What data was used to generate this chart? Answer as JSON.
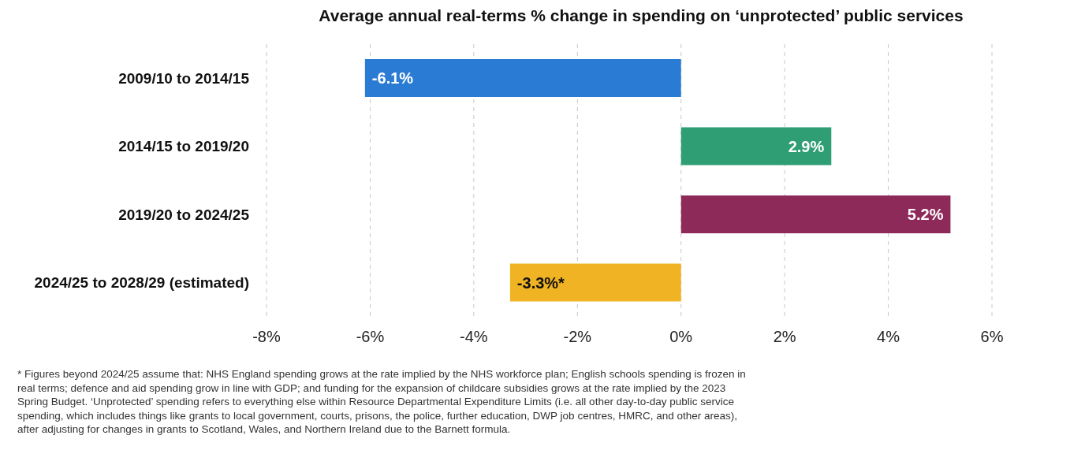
{
  "chart_data": {
    "type": "bar",
    "orientation": "horizontal",
    "title": "Average annual real-terms % change in spending on ‘unprotected’ public services",
    "categories": [
      "2009/10 to 2014/15",
      "2014/15 to 2019/20",
      "2019/20 to 2024/25",
      "2024/25 to 2028/29 (estimated)"
    ],
    "values": [
      -6.1,
      2.9,
      5.2,
      -3.3
    ],
    "value_labels": [
      "-6.1%",
      "2.9%",
      "5.2%",
      "-3.3%*"
    ],
    "colors": [
      "#2a7bd4",
      "#2f9e75",
      "#8e2a5a",
      "#f0b323"
    ],
    "xlim": [
      -8,
      6
    ],
    "xticks": [
      {
        "value": -8,
        "label": "-8%"
      },
      {
        "value": -6,
        "label": "-6%"
      },
      {
        "value": -4,
        "label": "-4%"
      },
      {
        "value": -2,
        "label": "-2%"
      },
      {
        "value": 0,
        "label": "0%"
      },
      {
        "value": 2,
        "label": "2%"
      },
      {
        "value": 4,
        "label": "4%"
      },
      {
        "value": 6,
        "label": "6%"
      }
    ],
    "grid": "x",
    "annotations": [
      "* Figures beyond 2024/25 assume that: NHS England spending grows at the rate implied by the NHS workforce plan; English schools spending is frozen in real terms; defence and aid spending grow in line with GDP; and funding for the expansion of childcare subsidies grows at the rate implied by the 2023 Spring Budget. ‘Unprotected’ spending refers to everything else within Resource Departmental Expenditure Limits (i.e. all other day-to-day public service spending, which includes things like grants to local government, courts, prisons, the police, further education, DWP job centres, HMRC, and other areas), after adjusting for changes in grants to Scotland, Wales, and Northern Ireland due to the Barnett formula."
    ]
  }
}
